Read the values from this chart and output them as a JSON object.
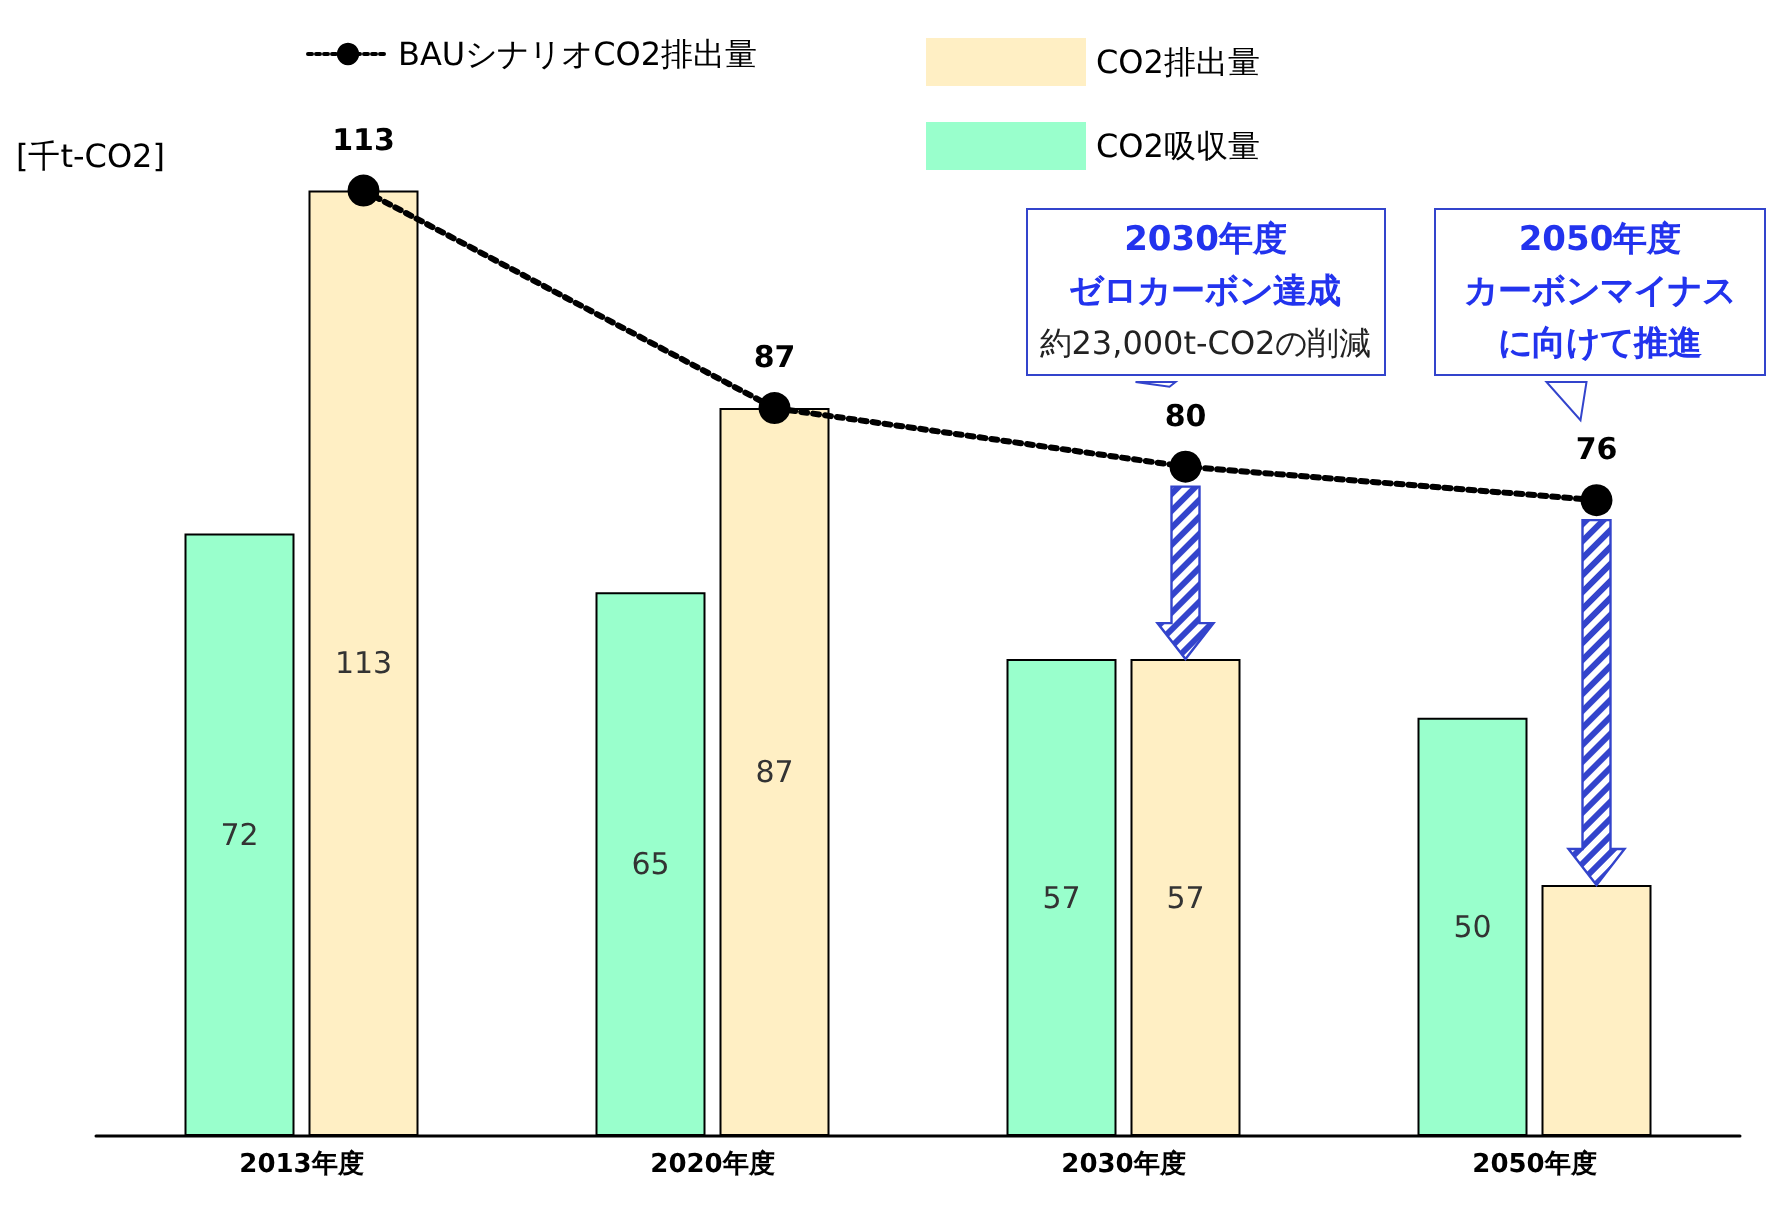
{
  "chart_data": {
    "type": "bar",
    "ylabel": "[千t-CO2]",
    "categories": [
      "2013年度",
      "2020年度",
      "2030年度",
      "2050年度"
    ],
    "series": [
      {
        "name": "CO2吸収量",
        "color": "#99ffcc",
        "values": [
          72,
          65,
          57,
          50
        ],
        "value_labels": [
          "72",
          "65",
          "57",
          "50"
        ]
      },
      {
        "name": "CO2排出量",
        "color": "#ffefc4",
        "values": [
          113,
          87,
          57,
          30
        ],
        "value_labels": [
          "113",
          "87",
          "57",
          null
        ]
      },
      {
        "name": "BAUシナリオCO2排出量",
        "type": "line",
        "color": "#000000",
        "values": [
          113,
          87,
          80,
          76
        ],
        "value_labels": [
          "113",
          "87",
          "80",
          "76"
        ],
        "marker": "circle",
        "line_style": "dotted"
      }
    ],
    "annotations": [
      "2030年度",
      "ゼロカーボン達成",
      "約23,000t-CO2の削減",
      "2050年度",
      "カーボンマイナスに向けて推進"
    ],
    "legend": "top",
    "grid": false
  }
}
